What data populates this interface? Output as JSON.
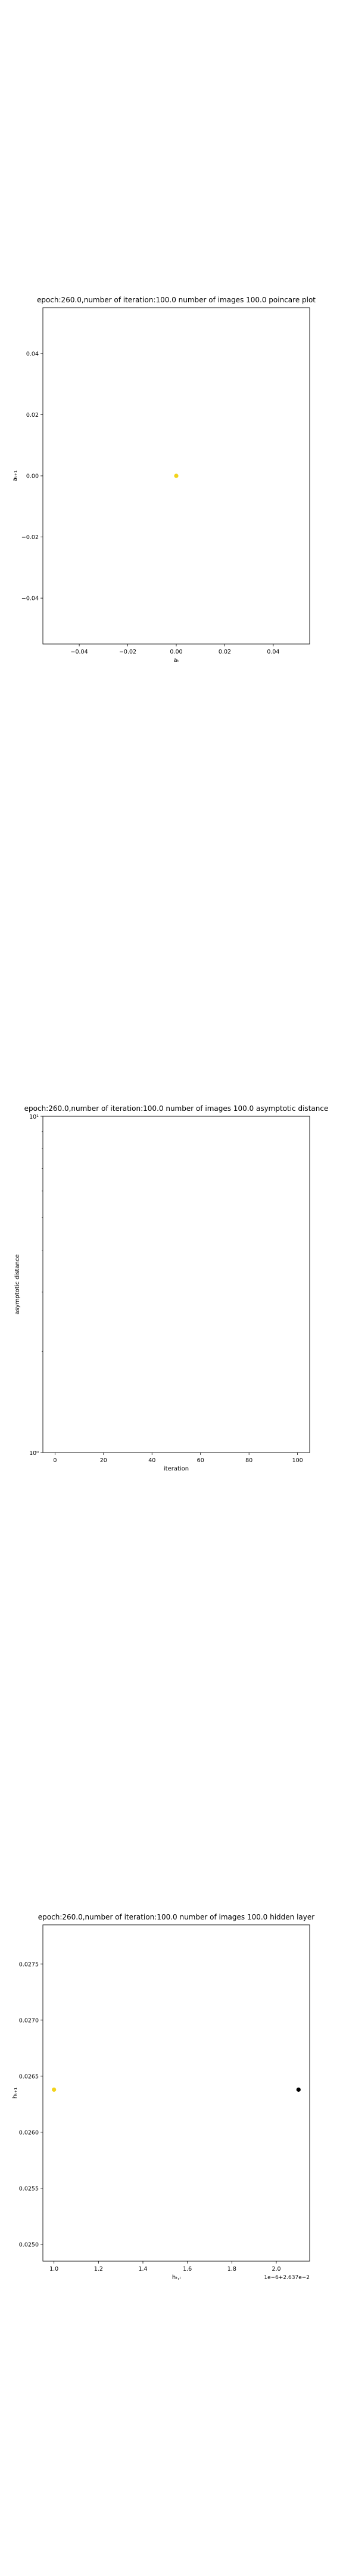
{
  "chart_data": [
    {
      "type": "scatter",
      "title": "epoch:260.0,number of iteration:100.0 number of images 100.0 poincare plot",
      "xlabel": "aₜ",
      "ylabel": "aₜ₊₁",
      "xlim": [
        -0.055,
        0.055
      ],
      "ylim": [
        -0.055,
        0.055
      ],
      "xticks": [
        -0.04,
        -0.02,
        0.0,
        0.02,
        0.04
      ],
      "yticks": [
        -0.04,
        -0.02,
        0.0,
        0.02,
        0.04
      ],
      "xticklabels": [
        "−0.04",
        "−0.02",
        "0.00",
        "0.02",
        "0.04"
      ],
      "yticklabels": [
        "−0.04",
        "−0.02",
        "0.00",
        "0.02",
        "0.04"
      ],
      "points": [
        {
          "x": 0.0,
          "y": 0.0,
          "color": "#f2d31b"
        }
      ]
    },
    {
      "type": "line",
      "title": "epoch:260.0,number of iteration:100.0  number of images 100.0 asymptotic distance",
      "xlabel": "iteration",
      "ylabel": "asymptotic distance",
      "y_scale": "log",
      "xlim": [
        -5,
        105
      ],
      "ylim": [
        1,
        10
      ],
      "xticks": [
        0,
        20,
        40,
        60,
        80,
        100
      ],
      "xticklabels": [
        "0",
        "20",
        "40",
        "60",
        "80",
        "100"
      ],
      "yticklabels": [
        "10⁰",
        "10¹"
      ],
      "series": []
    },
    {
      "type": "scatter",
      "title": "epoch:260.0,number of iteration:100.0  number of images 100.0 hidden layer",
      "xlabel": "hₜ,ᵢ",
      "ylabel": "hₜ₊₁",
      "xlim": [
        0.95,
        2.15
      ],
      "ylim": [
        0.02485,
        0.02785
      ],
      "xticks": [
        1.0,
        1.2,
        1.4,
        1.6,
        1.8,
        2.0
      ],
      "yticks": [
        0.025,
        0.0255,
        0.026,
        0.0265,
        0.027,
        0.0275
      ],
      "xticklabels": [
        "1.0",
        "1.2",
        "1.4",
        "1.6",
        "1.8",
        "2.0"
      ],
      "yticklabels": [
        "0.0250",
        "0.0255",
        "0.0260",
        "0.0265",
        "0.0270",
        "0.0275"
      ],
      "offset_text": "1e−6+2.637e−2",
      "points": [
        {
          "x": 1.0,
          "y": 0.02638,
          "color": "#f2d31b"
        },
        {
          "x": 2.1,
          "y": 0.02638,
          "color": "#000000"
        }
      ]
    }
  ]
}
